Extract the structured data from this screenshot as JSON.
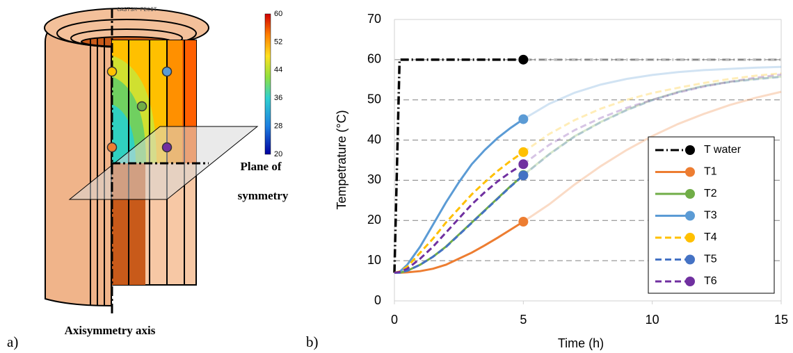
{
  "panel_labels": [
    "a)",
    "b)"
  ],
  "diagram": {
    "stamp": "CAST3M FECIT",
    "colorbar": {
      "ticks": [
        60,
        52,
        44,
        36,
        28,
        20
      ]
    },
    "plane_label": [
      "Plane of",
      "symmetry"
    ],
    "axis_label": "Axisymmetry axis"
  },
  "chart_data": {
    "type": "line",
    "xlabel": "Time (h)",
    "ylabel": "Tempetrature (°C)",
    "xlim": [
      0,
      15
    ],
    "xticks": [
      0,
      5,
      10,
      15
    ],
    "ylim": [
      0,
      70
    ],
    "yticks": [
      0,
      10,
      20,
      30,
      40,
      50,
      60,
      70
    ],
    "grid": true,
    "legend": "lower right",
    "marker_x": 5,
    "x": [
      0,
      0.2,
      0.5,
      1,
      1.5,
      2,
      2.5,
      3,
      3.5,
      4,
      4.5,
      5,
      6,
      7,
      8,
      9,
      10,
      11,
      12,
      13,
      14,
      15
    ],
    "series": [
      {
        "name": "T water",
        "color": "#000000",
        "dash": "dashdot",
        "values": [
          7,
          60,
          60,
          60,
          60,
          60,
          60,
          60,
          60,
          60,
          60,
          60,
          60,
          60,
          60,
          60,
          60,
          60,
          60,
          60,
          60,
          60
        ]
      },
      {
        "name": "T1",
        "color": "#ed7d31",
        "dash": "solid",
        "values": [
          7,
          7,
          7.1,
          7.4,
          8,
          9,
          10.5,
          12,
          13.8,
          15.7,
          17.7,
          19.7,
          24,
          29,
          33.5,
          37.5,
          41,
          44,
          46.5,
          48.7,
          50.5,
          52
        ]
      },
      {
        "name": "T2",
        "color": "#70ad47",
        "dash": "solid",
        "values": [
          7,
          7,
          7.5,
          9,
          11,
          13.5,
          16.5,
          19.5,
          22.5,
          25.5,
          28.5,
          31.3,
          36.5,
          41,
          44.5,
          47.5,
          50,
          52,
          53.5,
          54.5,
          55.2,
          55.8
        ]
      },
      {
        "name": "T3",
        "color": "#5b9bd5",
        "dash": "solid",
        "values": [
          7,
          7.2,
          9,
          13.5,
          19,
          24.5,
          29.5,
          34,
          37.5,
          40.5,
          43,
          45.2,
          49,
          51.8,
          53.8,
          55.2,
          56.2,
          56.9,
          57.4,
          57.7,
          58,
          58.2
        ]
      },
      {
        "name": "T4",
        "color": "#ffc000",
        "dash": "dash",
        "values": [
          7,
          7.3,
          8.5,
          12,
          15.5,
          19.5,
          23,
          26.5,
          29.5,
          32.3,
          34.8,
          37,
          41.5,
          45,
          47.8,
          50,
          51.7,
          53,
          54.2,
          55.2,
          56,
          56.6
        ]
      },
      {
        "name": "T5",
        "color": "#4472c4",
        "dash": "dash",
        "values": [
          7,
          7,
          7.5,
          9,
          11,
          13.4,
          16.4,
          19.4,
          22.4,
          25.4,
          28.4,
          31.2,
          36.4,
          40.9,
          44.4,
          47.4,
          49.9,
          51.9,
          53.4,
          54.4,
          55.1,
          55.7
        ]
      },
      {
        "name": "T6",
        "color": "#7030a0",
        "dash": "dash",
        "values": [
          7,
          7.2,
          8,
          10.5,
          13.5,
          17,
          20.5,
          24,
          27,
          29.7,
          32,
          34,
          38.8,
          42.5,
          45.5,
          48,
          50,
          51.8,
          53.3,
          54.5,
          55.5,
          56.3
        ]
      }
    ]
  }
}
